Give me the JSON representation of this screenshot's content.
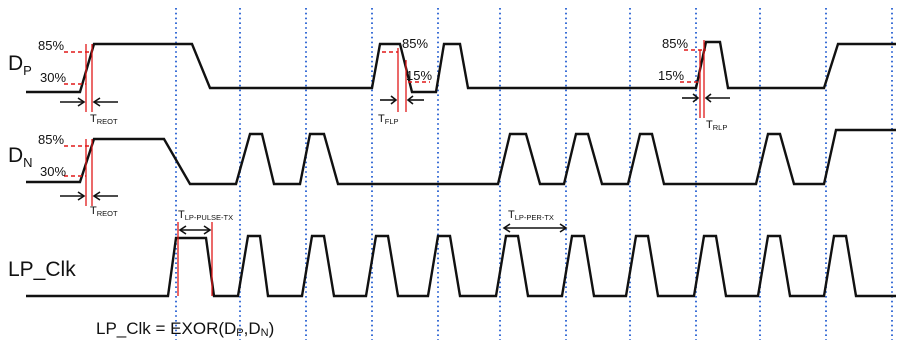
{
  "signals": {
    "dp": {
      "main": "D",
      "sub": "P"
    },
    "dn": {
      "main": "D",
      "sub": "N"
    },
    "lpclk": "LP_Clk"
  },
  "percent_labels": {
    "dp_high_1": "85%",
    "dp_low_1": "30%",
    "dp_high_2": "85%",
    "dp_low_2": "15%",
    "dp_high_3": "85%",
    "dp_low_3": "15%",
    "dn_high": "85%",
    "dn_low": "30%"
  },
  "timing_labels": {
    "dp_reot": {
      "main": "T",
      "sub": "REOT"
    },
    "dp_flp": {
      "main": "T",
      "sub": "FLP"
    },
    "dp_rlp": {
      "main": "T",
      "sub": "RLP"
    },
    "dn_reot": {
      "main": "T",
      "sub": "REOT"
    },
    "lp_pulse_tx": {
      "main": "T",
      "sub": "LP-PULSE-TX"
    },
    "lp_per_tx": {
      "main": "T",
      "sub": "LP-PER-TX"
    }
  },
  "equation": {
    "prefix": "LP_Clk = EXOR(D",
    "sub1": "P",
    "mid": ",D",
    "sub2": "N",
    "suffix": ")"
  },
  "colors": {
    "wave": "#111111",
    "grid": "#3b6fd6",
    "markers": "#e01818"
  }
}
